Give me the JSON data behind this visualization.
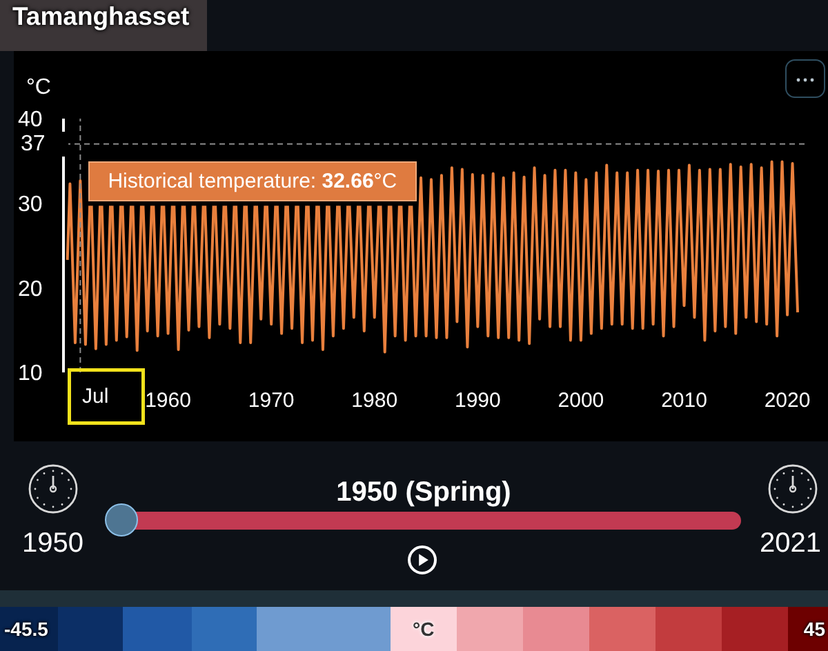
{
  "chart_data": {
    "type": "line",
    "title": "Tamanghasset",
    "ylabel": "°C",
    "x": [
      "1950-04",
      "1950-07",
      "1951-01",
      "1951-07",
      "1952-01",
      "1952-06",
      "1952-07",
      "1952-08",
      "1953-01",
      "1953-06",
      "1953-07",
      "1953-08",
      "1954-01",
      "1954-06",
      "1954-07",
      "1954-08",
      "1955-01",
      "1955-06",
      "1955-07",
      "1955-08",
      "1956-01",
      "1956-06",
      "1956-07",
      "1956-08",
      "1957-01",
      "1957-06",
      "1957-07",
      "1957-08",
      "1958-01",
      "1958-06",
      "1958-07",
      "1958-08",
      "1959-01",
      "1959-06",
      "1959-07",
      "1959-08",
      "1960-01",
      "1960-06",
      "1960-07",
      "1960-08",
      "1961-01",
      "1961-06",
      "1961-07",
      "1961-08",
      "1962-01",
      "1962-06",
      "1962-07",
      "1962-08",
      "1963-01",
      "1963-06",
      "1963-07",
      "1963-08",
      "1964-01",
      "1964-06",
      "1964-07",
      "1964-08",
      "1965-01",
      "1965-06",
      "1965-07",
      "1965-08",
      "1966-01",
      "1966-06",
      "1966-07",
      "1966-08",
      "1967-01",
      "1967-06",
      "1967-07",
      "1967-08",
      "1968-01",
      "1968-06",
      "1968-07",
      "1968-08",
      "1969-01",
      "1969-06",
      "1969-07",
      "1969-08",
      "1970-01",
      "1970-06",
      "1970-07",
      "1970-08",
      "1971-01",
      "1971-06",
      "1971-07",
      "1971-08",
      "1972-01",
      "1972-06",
      "1972-07",
      "1972-08",
      "1973-01",
      "1973-06",
      "1973-07",
      "1973-08",
      "1974-01",
      "1974-06",
      "1974-07",
      "1974-08",
      "1975-01",
      "1975-06",
      "1975-07",
      "1975-08",
      "1976-01",
      "1976-06",
      "1976-07",
      "1976-08",
      "1977-01",
      "1977-06",
      "1977-07",
      "1977-08",
      "1978-01",
      "1978-06",
      "1978-07",
      "1978-08",
      "1979-01",
      "1979-06",
      "1979-07",
      "1979-08",
      "1980-01",
      "1980-06",
      "1980-07",
      "1980-08",
      "1981-01",
      "1981-06",
      "1981-07",
      "1981-08",
      "1982-01",
      "1982-06",
      "1982-07",
      "1982-08",
      "1983-01",
      "1983-06",
      "1983-07",
      "1983-08",
      "1984-01",
      "1984-07",
      "1985-01",
      "1985-07",
      "1986-01",
      "1986-07",
      "1987-01",
      "1987-07",
      "1988-01",
      "1988-07",
      "1989-01",
      "1989-07",
      "1990-01",
      "1990-07",
      "1991-01",
      "1991-07",
      "1992-01",
      "1992-07",
      "1993-01",
      "1993-07",
      "1994-01",
      "1994-07",
      "1995-01",
      "1995-07",
      "1996-01",
      "1996-07",
      "1997-01",
      "1997-07",
      "1998-01",
      "1998-07",
      "1999-01",
      "1999-07",
      "2000-01",
      "2000-07",
      "2001-01",
      "2001-07",
      "2002-01",
      "2002-07",
      "2003-01",
      "2003-07",
      "2004-01",
      "2004-07",
      "2005-01",
      "2005-07",
      "2006-01",
      "2006-07",
      "2007-01",
      "2007-07",
      "2008-01",
      "2008-07",
      "2009-01",
      "2009-07",
      "2010-01",
      "2010-07",
      "2011-01",
      "2011-07",
      "2012-01",
      "2012-07",
      "2013-01",
      "2013-07",
      "2014-01",
      "2014-07",
      "2015-01",
      "2015-07",
      "2016-01",
      "2016-07",
      "2017-01",
      "2017-07",
      "2018-01",
      "2018-07",
      "2019-01",
      "2019-07",
      "2020-01",
      "2020-07",
      "2021-01"
    ],
    "values": [
      23.3,
      32.3,
      13.5,
      32.66,
      13.3,
      29.7,
      null,
      29.7,
      12.8,
      29.7,
      null,
      29.7,
      13.3,
      29.7,
      null,
      29.7,
      13.8,
      29.7,
      null,
      29.7,
      14.2,
      29.7,
      null,
      29.7,
      12.6,
      29.7,
      null,
      29.7,
      14.9,
      29.7,
      null,
      29.7,
      14.3,
      29.7,
      null,
      29.7,
      14.6,
      29.7,
      null,
      29.7,
      12.7,
      29.7,
      null,
      29.7,
      15.0,
      29.7,
      null,
      29.7,
      15.4,
      29.7,
      null,
      29.7,
      14.1,
      29.7,
      null,
      29.7,
      15.7,
      29.7,
      null,
      29.7,
      15.2,
      29.7,
      null,
      29.7,
      13.5,
      29.7,
      null,
      29.7,
      13.5,
      29.7,
      null,
      29.7,
      16.3,
      29.7,
      null,
      29.7,
      15.7,
      29.7,
      null,
      29.7,
      14.6,
      29.7,
      null,
      29.7,
      15.2,
      29.7,
      null,
      29.7,
      13.5,
      29.7,
      null,
      29.7,
      13.8,
      29.7,
      null,
      29.7,
      12.7,
      29.7,
      null,
      29.7,
      14.3,
      29.7,
      null,
      29.7,
      15.2,
      29.7,
      null,
      29.7,
      16.5,
      29.7,
      null,
      29.7,
      14.9,
      29.7,
      null,
      29.7,
      16.5,
      29.7,
      null,
      29.7,
      12.4,
      29.7,
      null,
      29.7,
      14.3,
      29.7,
      null,
      29.7,
      13.8,
      29.7,
      null,
      29.7,
      14.3,
      33.0,
      14.3,
      32.8,
      14.1,
      33.3,
      14.1,
      34.2,
      16.0,
      34.0,
      13.0,
      33.4,
      15.4,
      33.3,
      14.3,
      33.5,
      14.1,
      33.0,
      14.1,
      33.6,
      13.8,
      33.1,
      13.4,
      34.2,
      16.3,
      33.3,
      15.4,
      33.9,
      15.4,
      33.9,
      13.8,
      33.6,
      13.8,
      32.8,
      14.6,
      33.6,
      15.2,
      34.5,
      15.7,
      33.6,
      15.7,
      33.6,
      15.2,
      33.9,
      15.2,
      33.9,
      15.7,
      33.8,
      14.3,
      33.9,
      15.4,
      33.9,
      17.9,
      34.5,
      16.5,
      33.9,
      13.8,
      34.0,
      14.9,
      34.0,
      15.4,
      34.6,
      14.6,
      34.3,
      16.5,
      34.6,
      16.0,
      34.2,
      15.7,
      34.9,
      14.3,
      34.9,
      16.8,
      34.7,
      17.1
    ],
    "color": "#e9803d",
    "xlim": [
      "1950-01-01",
      "2021-09-01"
    ],
    "xticks": [
      "1960",
      "1970",
      "1980",
      "1990",
      "2000",
      "2010",
      "2020"
    ],
    "ylim": [
      10,
      40
    ],
    "yticks": [
      10,
      20,
      30,
      40
    ],
    "ref_lines": [
      {
        "axis": "y",
        "value": 37,
        "label": "37",
        "color": "#8a8a8a",
        "line_style": "dashed"
      },
      {
        "axis": "x",
        "value": "1951-07",
        "label": "Jul",
        "color": "#8a8a8a",
        "line_style": "dashed"
      }
    ],
    "annotations": [
      "1950 (Spring)",
      "1950",
      "2021",
      {
        "text": "Historical temperature: 32.66°C",
        "x": "1951-07",
        "y": 32.66
      }
    ],
    "clabel": "°C",
    "clim": [
      -45.5,
      45
    ],
    "cticks": [
      -45.5,
      45
    ]
  }
}
